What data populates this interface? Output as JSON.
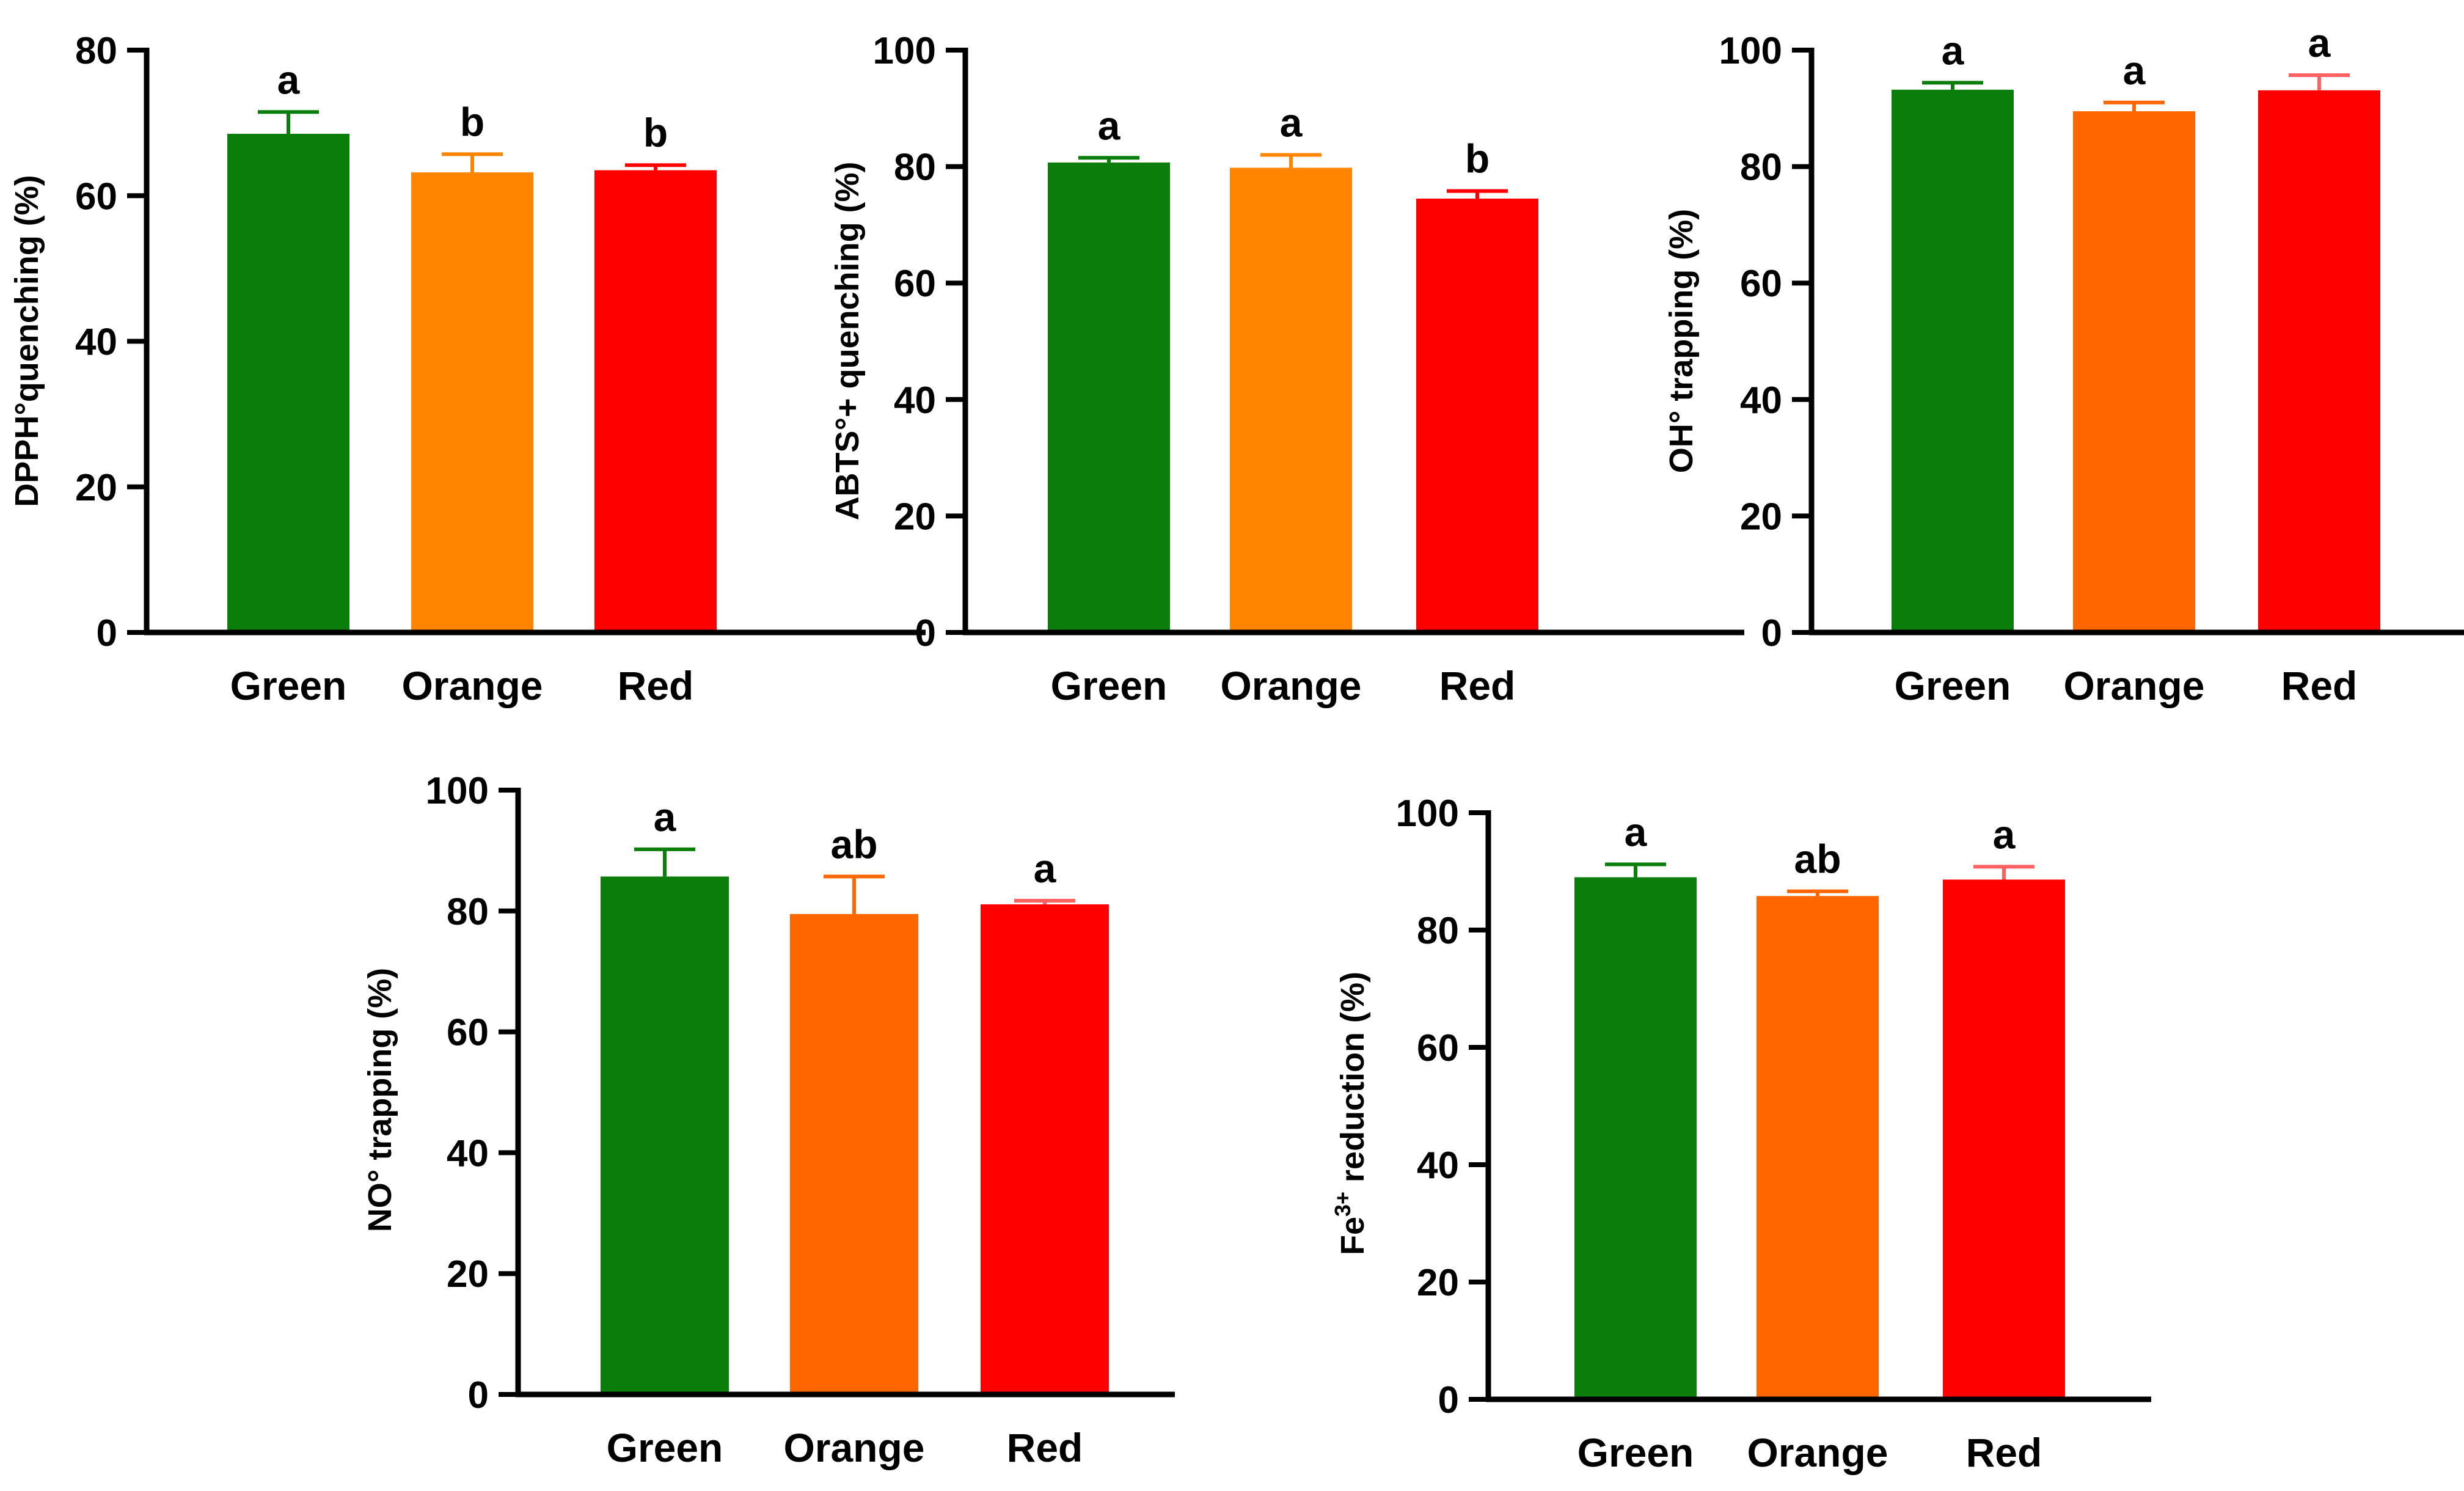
{
  "chart_data": [
    {
      "type": "bar",
      "ylabel": "DPPH°quenching (%)",
      "ylim": [
        0,
        80
      ],
      "yticks": [
        0,
        20,
        40,
        60,
        80
      ],
      "categories": [
        "Green",
        "Orange",
        "Red"
      ],
      "values": [
        68.5,
        63.2,
        63.5
      ],
      "errors": [
        3.0,
        2.5,
        0.7
      ],
      "letters": [
        "a",
        "b",
        "b"
      ],
      "colors": [
        "#0b7d0b",
        "#ff8400",
        "#ff0000"
      ],
      "error_colors": [
        "#0b7d0b",
        "#ff8400",
        "#ff0000"
      ]
    },
    {
      "type": "bar",
      "ylabel": "ABTS°+ quenching (%)",
      "ylim": [
        0,
        100
      ],
      "yticks": [
        0,
        20,
        40,
        60,
        80,
        100
      ],
      "categories": [
        "Green",
        "Orange",
        "Red"
      ],
      "values": [
        80.7,
        79.8,
        74.5
      ],
      "errors": [
        0.8,
        2.2,
        1.3
      ],
      "letters": [
        "a",
        "a",
        "b"
      ],
      "colors": [
        "#0b7d0b",
        "#ff8400",
        "#ff0000"
      ],
      "error_colors": [
        "#0b7d0b",
        "#ff8400",
        "#ff0000"
      ]
    },
    {
      "type": "bar",
      "ylabel": "OH° trapping (%)",
      "ylim": [
        0,
        100
      ],
      "yticks": [
        0,
        20,
        40,
        60,
        80,
        100
      ],
      "categories": [
        "Green",
        "Orange",
        "Red"
      ],
      "values": [
        93.2,
        89.5,
        93.1
      ],
      "errors": [
        1.2,
        1.5,
        2.6
      ],
      "letters": [
        "a",
        "a",
        "a"
      ],
      "colors": [
        "#0b7d0b",
        "#ff6600",
        "#ff0000"
      ],
      "error_colors": [
        "#0b7d0b",
        "#ff6600",
        "#ff6060"
      ]
    },
    {
      "type": "bar",
      "ylabel": "NO° trapping (%)",
      "ylim": [
        0,
        100
      ],
      "yticks": [
        0,
        20,
        40,
        60,
        80,
        100
      ],
      "categories": [
        "Green",
        "Orange",
        "Red"
      ],
      "values": [
        85.7,
        79.5,
        81.1
      ],
      "errors": [
        4.5,
        6.2,
        0.6
      ],
      "letters": [
        "a",
        "ab",
        "a"
      ],
      "colors": [
        "#0b7d0b",
        "#ff6600",
        "#ff0000"
      ],
      "error_colors": [
        "#0b7d0b",
        "#ff6600",
        "#ff6060"
      ]
    },
    {
      "type": "bar",
      "ylabel": "Fe³⁺ reduction (%)",
      "ylabel_parts": [
        "Fe",
        "3+",
        " reduction (%)"
      ],
      "ylim": [
        0,
        100
      ],
      "yticks": [
        0,
        20,
        40,
        60,
        80,
        100
      ],
      "categories": [
        "Green",
        "Orange",
        "Red"
      ],
      "values": [
        89.0,
        85.8,
        88.6
      ],
      "errors": [
        2.2,
        0.8,
        2.2
      ],
      "letters": [
        "a",
        "ab",
        "a"
      ],
      "colors": [
        "#0b7d0b",
        "#ff6600",
        "#ff0000"
      ],
      "error_colors": [
        "#0b7d0b",
        "#ff6600",
        "#ff6060"
      ]
    }
  ]
}
